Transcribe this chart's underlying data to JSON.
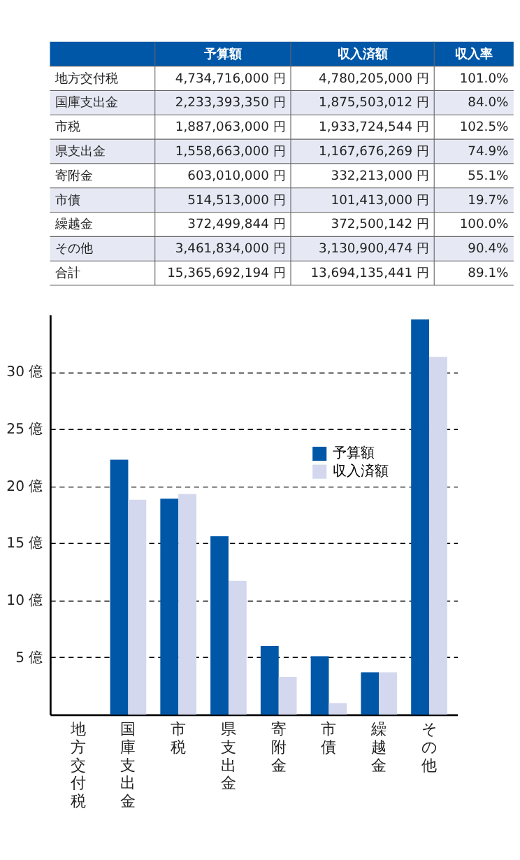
{
  "chart_data": {
    "type": "bar",
    "categories": [
      "地方交付税",
      "国庫支出金",
      "市税",
      "県支出金",
      "寄附金",
      "市債",
      "繰越金",
      "その他"
    ],
    "series": [
      {
        "name": "予算額",
        "color": "#0057a8",
        "values": [
          null,
          22.3,
          18.9,
          15.6,
          6.0,
          5.1,
          3.7,
          34.6
        ]
      },
      {
        "name": "収入済額",
        "color": "#d3d8ee",
        "values": [
          null,
          18.8,
          19.3,
          11.7,
          3.3,
          1.0,
          3.7,
          31.3
        ]
      }
    ],
    "ylim": [
      0,
      35
    ],
    "yticks": [
      {
        "value": 5,
        "label": "5 億"
      },
      {
        "value": 10,
        "label": "10 億"
      },
      {
        "value": 15,
        "label": "15 億"
      },
      {
        "value": 20,
        "label": "20 億"
      },
      {
        "value": 25,
        "label": "25 億"
      },
      {
        "value": 30,
        "label": "30 億"
      }
    ],
    "grid": "y",
    "legend": "right",
    "annotations": [
      "予算額",
      "収入済額",
      "収入率",
      "地方交付税",
      "4,734,716,000 円",
      "4,780,205,000 円",
      "101.0%",
      "国庫支出金",
      "2,233,393,350 円",
      "1,875,503,012 円",
      "84.0%",
      "市税",
      "1,887,063,000 円",
      "1,933,724,544 円",
      "102.5%",
      "県支出金",
      "1,558,663,000 円",
      "1,167,676,269 円",
      "74.9%",
      "寄附金",
      "603,010,000 円",
      "332,213,000 円",
      "55.1%",
      "市債",
      "514,513,000 円",
      "101,413,000 円",
      "19.7%",
      "繰越金",
      "372,499,844 円",
      "372,500,142 円",
      "100.0%",
      "その他",
      "3,461,834,000 円",
      "3,130,900,474 円",
      "90.4%",
      "合計",
      "15,365,692,194 円",
      "13,694,135,441 円",
      "89.1%"
    ]
  }
}
